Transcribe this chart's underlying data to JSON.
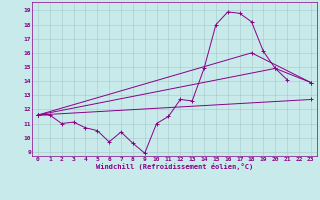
{
  "xlabel": "Windchill (Refroidissement éolien,°C)",
  "bg_color": "#c8eaea",
  "line_color": "#880088",
  "grid_color": "#a8c8c8",
  "xlim": [
    -0.5,
    23.5
  ],
  "ylim": [
    8.7,
    19.6
  ],
  "yticks": [
    9,
    10,
    11,
    12,
    13,
    14,
    15,
    16,
    17,
    18,
    19
  ],
  "xticks": [
    0,
    1,
    2,
    3,
    4,
    5,
    6,
    7,
    8,
    9,
    10,
    11,
    12,
    13,
    14,
    15,
    16,
    17,
    18,
    19,
    20,
    21,
    22,
    23
  ],
  "series": [
    {
      "x": [
        0,
        1,
        2,
        3,
        4,
        5,
        6,
        7,
        8,
        9,
        10,
        11,
        12,
        13,
        14,
        15,
        16,
        17,
        18,
        19,
        20,
        21
      ],
      "y": [
        11.6,
        11.6,
        11.0,
        11.1,
        10.7,
        10.5,
        9.7,
        10.4,
        9.6,
        8.9,
        11.0,
        11.5,
        12.7,
        12.6,
        14.9,
        18.0,
        18.9,
        18.8,
        18.2,
        16.1,
        14.9,
        14.1
      ]
    },
    {
      "x": [
        0,
        23
      ],
      "y": [
        11.6,
        12.7
      ]
    },
    {
      "x": [
        0,
        18,
        23
      ],
      "y": [
        11.6,
        16.0,
        13.9
      ]
    },
    {
      "x": [
        0,
        20,
        23
      ],
      "y": [
        11.6,
        14.9,
        13.9
      ]
    }
  ]
}
